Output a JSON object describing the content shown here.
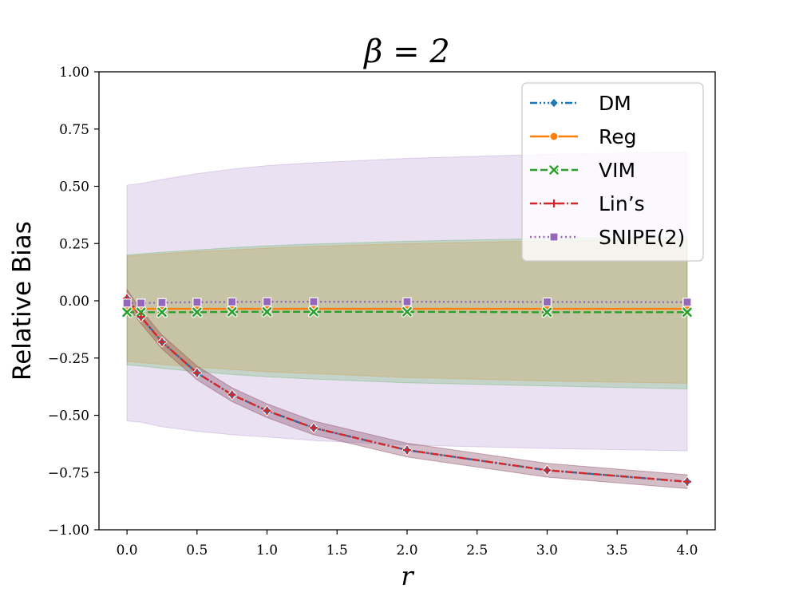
{
  "chart_data": {
    "type": "line",
    "title": "β = 2",
    "xlabel": "r",
    "ylabel": "Relative Bias",
    "xlim": [
      -0.2,
      4.2
    ],
    "ylim": [
      -1.0,
      1.0
    ],
    "xticks": [
      0.0,
      0.5,
      1.0,
      1.5,
      2.0,
      2.5,
      3.0,
      3.5,
      4.0
    ],
    "xtick_labels": [
      "0.0",
      "0.5",
      "1.0",
      "1.5",
      "2.0",
      "2.5",
      "3.0",
      "3.5",
      "4.0"
    ],
    "yticks": [
      1.0,
      0.75,
      0.5,
      0.25,
      0.0,
      -0.25,
      -0.5,
      -0.75,
      -1.0
    ],
    "ytick_labels": [
      "1.00",
      "0.75",
      "0.50",
      "0.25",
      "0.00",
      "−0.25",
      "−0.50",
      "−0.75",
      "−1.00"
    ],
    "grid": false,
    "legend_position": "top-right",
    "x": [
      0.0,
      0.1,
      0.25,
      0.5,
      0.75,
      1.0,
      1.333,
      2.0,
      3.0,
      4.0
    ],
    "series": [
      {
        "name": "DM",
        "color": "#1f77b4",
        "dash": "dashdotdot",
        "marker": "diamond",
        "values": [
          0.01,
          -0.07,
          -0.18,
          -0.315,
          -0.41,
          -0.48,
          -0.555,
          -0.652,
          -0.74,
          -0.79
        ],
        "band_lower": [
          -0.02,
          -0.1,
          -0.21,
          -0.345,
          -0.44,
          -0.51,
          -0.585,
          -0.682,
          -0.77,
          -0.82
        ],
        "band_upper": [
          0.05,
          -0.04,
          -0.15,
          -0.285,
          -0.38,
          -0.45,
          -0.525,
          -0.622,
          -0.71,
          -0.76
        ]
      },
      {
        "name": "Reg",
        "color": "#ff7f0e",
        "dash": "solid",
        "marker": "circle",
        "values": [
          -0.035,
          -0.035,
          -0.035,
          -0.035,
          -0.035,
          -0.035,
          -0.035,
          -0.035,
          -0.035,
          -0.035
        ],
        "band_lower": [
          -0.265,
          -0.27,
          -0.278,
          -0.29,
          -0.3,
          -0.31,
          -0.318,
          -0.335,
          -0.35,
          -0.36
        ],
        "band_upper": [
          0.195,
          0.2,
          0.205,
          0.215,
          0.222,
          0.23,
          0.238,
          0.25,
          0.262,
          0.27
        ]
      },
      {
        "name": "VIM",
        "color": "#2ca02c",
        "dash": "dashed",
        "marker": "x",
        "values": [
          -0.05,
          -0.05,
          -0.05,
          -0.05,
          -0.048,
          -0.048,
          -0.048,
          -0.048,
          -0.05,
          -0.05
        ],
        "band_lower": [
          -0.28,
          -0.285,
          -0.295,
          -0.31,
          -0.322,
          -0.332,
          -0.342,
          -0.358,
          -0.372,
          -0.385
        ],
        "band_upper": [
          0.2,
          0.205,
          0.212,
          0.222,
          0.232,
          0.24,
          0.248,
          0.26,
          0.272,
          0.28
        ]
      },
      {
        "name": "Lin’s",
        "color": "#d62728",
        "dash": "dashdot",
        "marker": "plus",
        "values": [
          0.01,
          -0.07,
          -0.18,
          -0.315,
          -0.41,
          -0.48,
          -0.555,
          -0.652,
          -0.74,
          -0.79
        ],
        "band_lower": [
          -0.02,
          -0.1,
          -0.21,
          -0.345,
          -0.44,
          -0.51,
          -0.585,
          -0.682,
          -0.77,
          -0.82
        ],
        "band_upper": [
          0.05,
          -0.04,
          -0.15,
          -0.285,
          -0.38,
          -0.45,
          -0.525,
          -0.622,
          -0.71,
          -0.76
        ]
      },
      {
        "name": "SNIPE(2)",
        "color": "#9467bd",
        "dash": "dotted",
        "marker": "square",
        "values": [
          -0.01,
          -0.01,
          -0.008,
          -0.006,
          -0.005,
          -0.004,
          -0.004,
          -0.004,
          -0.005,
          -0.006
        ],
        "band_lower": [
          -0.525,
          -0.53,
          -0.55,
          -0.57,
          -0.585,
          -0.595,
          -0.61,
          -0.63,
          -0.645,
          -0.655
        ],
        "band_upper": [
          0.505,
          0.512,
          0.53,
          0.555,
          0.575,
          0.59,
          0.603,
          0.622,
          0.64,
          0.65
        ]
      }
    ]
  }
}
